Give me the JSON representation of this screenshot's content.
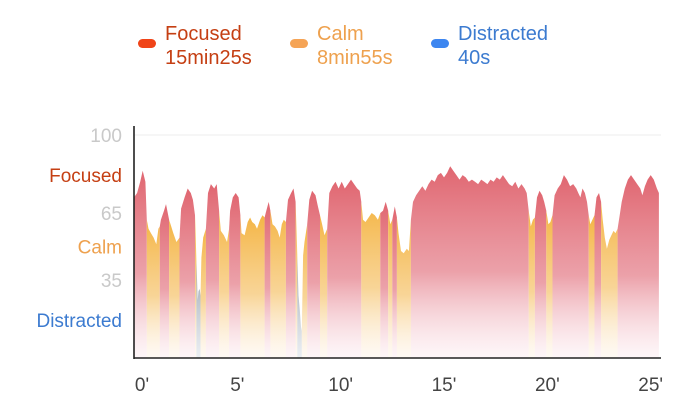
{
  "chart_data": {
    "type": "area",
    "legend_position": "top",
    "series": [
      {
        "name": "Focused",
        "duration": "15min25s",
        "color": "#f04418",
        "text_color": "#c53f13",
        "fill_top": "#e06670"
      },
      {
        "name": "Calm",
        "duration": "8min55s",
        "color": "#f5a456",
        "text_color": "#eea14e",
        "fill_top": "#f4b545"
      },
      {
        "name": "Distracted",
        "duration": "40s",
        "color": "#3d86f0",
        "text_color": "#3c7bd0",
        "fill_top": "#9aa8b8"
      }
    ],
    "x_ticks": [
      "0'",
      "5'",
      "10'",
      "15'",
      "20'",
      "25'"
    ],
    "xlim": [
      0,
      25.5
    ],
    "y_ticks": [
      100,
      65,
      35
    ],
    "ylim": [
      0,
      100
    ],
    "y_category_labels": [
      {
        "label": "Focused",
        "value": 82
      },
      {
        "label": "Calm",
        "value": 50
      },
      {
        "label": "Distracted",
        "value": 17
      }
    ],
    "top_gridline": 100,
    "values": [
      [
        0.0,
        72,
        "F"
      ],
      [
        0.15,
        74,
        "F"
      ],
      [
        0.3,
        79,
        "F"
      ],
      [
        0.42,
        84,
        "F"
      ],
      [
        0.55,
        79,
        "F"
      ],
      [
        0.62,
        62,
        "F"
      ],
      [
        0.7,
        58,
        "C"
      ],
      [
        0.82,
        56,
        "C"
      ],
      [
        0.95,
        54,
        "C"
      ],
      [
        1.08,
        51,
        "C"
      ],
      [
        1.18,
        58,
        "C"
      ],
      [
        1.25,
        59,
        "C"
      ],
      [
        1.3,
        62,
        "F"
      ],
      [
        1.45,
        66,
        "F"
      ],
      [
        1.55,
        69,
        "F"
      ],
      [
        1.7,
        62,
        "F"
      ],
      [
        1.8,
        59,
        "C"
      ],
      [
        1.9,
        56,
        "C"
      ],
      [
        2.05,
        52,
        "C"
      ],
      [
        2.2,
        54,
        "C"
      ],
      [
        2.28,
        67,
        "F"
      ],
      [
        2.45,
        72,
        "F"
      ],
      [
        2.6,
        76,
        "F"
      ],
      [
        2.75,
        74,
        "F"
      ],
      [
        2.85,
        71,
        "F"
      ],
      [
        2.95,
        64,
        "F"
      ],
      [
        3.02,
        44,
        "C"
      ],
      [
        3.08,
        26,
        "D"
      ],
      [
        3.12,
        30,
        "D"
      ],
      [
        3.18,
        31,
        "D"
      ],
      [
        3.22,
        28,
        "D"
      ],
      [
        3.26,
        45,
        "C"
      ],
      [
        3.35,
        54,
        "C"
      ],
      [
        3.48,
        58,
        "C"
      ],
      [
        3.58,
        74,
        "F"
      ],
      [
        3.72,
        78,
        "F"
      ],
      [
        3.88,
        76,
        "F"
      ],
      [
        4.0,
        78,
        "F"
      ],
      [
        4.12,
        66,
        "F"
      ],
      [
        4.2,
        57,
        "C"
      ],
      [
        4.35,
        55,
        "C"
      ],
      [
        4.5,
        52,
        "C"
      ],
      [
        4.6,
        58,
        "C"
      ],
      [
        4.65,
        66,
        "F"
      ],
      [
        4.78,
        72,
        "F"
      ],
      [
        4.92,
        74,
        "F"
      ],
      [
        5.06,
        72,
        "F"
      ],
      [
        5.15,
        64,
        "F"
      ],
      [
        5.2,
        56,
        "C"
      ],
      [
        5.35,
        55,
        "C"
      ],
      [
        5.5,
        61,
        "C"
      ],
      [
        5.62,
        63,
        "C"
      ],
      [
        5.72,
        61,
        "C"
      ],
      [
        5.85,
        60,
        "C"
      ],
      [
        5.95,
        58,
        "C"
      ],
      [
        6.1,
        62,
        "C"
      ],
      [
        6.22,
        64,
        "C"
      ],
      [
        6.32,
        63,
        "C"
      ],
      [
        6.4,
        66,
        "F"
      ],
      [
        6.52,
        70,
        "F"
      ],
      [
        6.6,
        66,
        "F"
      ],
      [
        6.7,
        60,
        "C"
      ],
      [
        6.82,
        59,
        "C"
      ],
      [
        6.95,
        57,
        "C"
      ],
      [
        7.05,
        54,
        "C"
      ],
      [
        7.15,
        60,
        "C"
      ],
      [
        7.25,
        62,
        "C"
      ],
      [
        7.35,
        61,
        "C"
      ],
      [
        7.45,
        71,
        "F"
      ],
      [
        7.6,
        74,
        "F"
      ],
      [
        7.72,
        76,
        "F"
      ],
      [
        7.82,
        70,
        "F"
      ],
      [
        7.9,
        46,
        "C"
      ],
      [
        7.96,
        28,
        "D"
      ],
      [
        8.02,
        22,
        "D"
      ],
      [
        8.08,
        14,
        "D"
      ],
      [
        8.12,
        12,
        "D"
      ],
      [
        8.18,
        46,
        "C"
      ],
      [
        8.25,
        52,
        "C"
      ],
      [
        8.38,
        60,
        "C"
      ],
      [
        8.48,
        71,
        "F"
      ],
      [
        8.62,
        75,
        "F"
      ],
      [
        8.78,
        73,
        "F"
      ],
      [
        8.9,
        68,
        "F"
      ],
      [
        9.0,
        64,
        "F"
      ],
      [
        9.1,
        60,
        "C"
      ],
      [
        9.22,
        55,
        "C"
      ],
      [
        9.35,
        58,
        "C"
      ],
      [
        9.45,
        74,
        "F"
      ],
      [
        9.6,
        77,
        "F"
      ],
      [
        9.75,
        79,
        "F"
      ],
      [
        9.9,
        76,
        "F"
      ],
      [
        10.05,
        79,
        "F"
      ],
      [
        10.2,
        76,
        "F"
      ],
      [
        10.35,
        78,
        "F"
      ],
      [
        10.5,
        80,
        "F"
      ],
      [
        10.65,
        78,
        "F"
      ],
      [
        10.8,
        76,
        "F"
      ],
      [
        10.92,
        75,
        "F"
      ],
      [
        11.0,
        70,
        "F"
      ],
      [
        11.08,
        62,
        "C"
      ],
      [
        11.2,
        61,
        "C"
      ],
      [
        11.35,
        63,
        "C"
      ],
      [
        11.5,
        65,
        "C"
      ],
      [
        11.65,
        64,
        "C"
      ],
      [
        11.8,
        62,
        "C"
      ],
      [
        11.92,
        65,
        "C"
      ],
      [
        12.05,
        66,
        "F"
      ],
      [
        12.18,
        70,
        "F"
      ],
      [
        12.3,
        66,
        "F"
      ],
      [
        12.4,
        60,
        "C"
      ],
      [
        12.5,
        62,
        "C"
      ],
      [
        12.62,
        68,
        "F"
      ],
      [
        12.72,
        63,
        "F"
      ],
      [
        12.8,
        56,
        "C"
      ],
      [
        12.92,
        48,
        "C"
      ],
      [
        13.05,
        47,
        "C"
      ],
      [
        13.2,
        49,
        "C"
      ],
      [
        13.3,
        48,
        "C"
      ],
      [
        13.4,
        62,
        "C"
      ],
      [
        13.5,
        70,
        "F"
      ],
      [
        13.65,
        73,
        "F"
      ],
      [
        13.8,
        75,
        "F"
      ],
      [
        13.95,
        77,
        "F"
      ],
      [
        14.1,
        75,
        "F"
      ],
      [
        14.25,
        78,
        "F"
      ],
      [
        14.4,
        80,
        "F"
      ],
      [
        14.55,
        79,
        "F"
      ],
      [
        14.7,
        82,
        "F"
      ],
      [
        14.85,
        83,
        "F"
      ],
      [
        15.0,
        81,
        "F"
      ],
      [
        15.15,
        83,
        "F"
      ],
      [
        15.3,
        86,
        "F"
      ],
      [
        15.45,
        84,
        "F"
      ],
      [
        15.6,
        82,
        "F"
      ],
      [
        15.75,
        80,
        "F"
      ],
      [
        15.9,
        82,
        "F"
      ],
      [
        16.05,
        81,
        "F"
      ],
      [
        16.2,
        79,
        "F"
      ],
      [
        16.35,
        80,
        "F"
      ],
      [
        16.5,
        79,
        "F"
      ],
      [
        16.65,
        78,
        "F"
      ],
      [
        16.8,
        80,
        "F"
      ],
      [
        16.95,
        79,
        "F"
      ],
      [
        17.1,
        78,
        "F"
      ],
      [
        17.25,
        80,
        "F"
      ],
      [
        17.4,
        79,
        "F"
      ],
      [
        17.55,
        81,
        "F"
      ],
      [
        17.7,
        80,
        "F"
      ],
      [
        17.85,
        82,
        "F"
      ],
      [
        18.0,
        80,
        "F"
      ],
      [
        18.15,
        78,
        "F"
      ],
      [
        18.3,
        77,
        "F"
      ],
      [
        18.45,
        79,
        "F"
      ],
      [
        18.6,
        76,
        "F"
      ],
      [
        18.75,
        78,
        "F"
      ],
      [
        18.9,
        76,
        "F"
      ],
      [
        19.0,
        74,
        "F"
      ],
      [
        19.1,
        66,
        "F"
      ],
      [
        19.2,
        59,
        "C"
      ],
      [
        19.3,
        62,
        "C"
      ],
      [
        19.4,
        63,
        "C"
      ],
      [
        19.5,
        72,
        "F"
      ],
      [
        19.62,
        75,
        "F"
      ],
      [
        19.75,
        73,
        "F"
      ],
      [
        19.85,
        70,
        "F"
      ],
      [
        19.95,
        66,
        "F"
      ],
      [
        20.05,
        60,
        "C"
      ],
      [
        20.15,
        61,
        "C"
      ],
      [
        20.25,
        64,
        "C"
      ],
      [
        20.35,
        73,
        "F"
      ],
      [
        20.5,
        76,
        "F"
      ],
      [
        20.65,
        78,
        "F"
      ],
      [
        20.8,
        82,
        "F"
      ],
      [
        20.95,
        80,
        "F"
      ],
      [
        21.1,
        77,
        "F"
      ],
      [
        21.25,
        78,
        "F"
      ],
      [
        21.4,
        76,
        "F"
      ],
      [
        21.5,
        74,
        "F"
      ],
      [
        21.6,
        72,
        "F"
      ],
      [
        21.7,
        76,
        "F"
      ],
      [
        21.82,
        74,
        "F"
      ],
      [
        21.92,
        70,
        "F"
      ],
      [
        22.0,
        64,
        "F"
      ],
      [
        22.08,
        60,
        "C"
      ],
      [
        22.18,
        62,
        "C"
      ],
      [
        22.28,
        64,
        "C"
      ],
      [
        22.38,
        72,
        "F"
      ],
      [
        22.5,
        74,
        "F"
      ],
      [
        22.6,
        70,
        "F"
      ],
      [
        22.68,
        62,
        "C"
      ],
      [
        22.78,
        54,
        "C"
      ],
      [
        22.88,
        49,
        "C"
      ],
      [
        23.0,
        53,
        "C"
      ],
      [
        23.1,
        55,
        "C"
      ],
      [
        23.2,
        57,
        "C"
      ],
      [
        23.3,
        56,
        "C"
      ],
      [
        23.4,
        58,
        "C"
      ],
      [
        23.5,
        64,
        "F"
      ],
      [
        23.6,
        70,
        "F"
      ],
      [
        23.75,
        76,
        "F"
      ],
      [
        23.9,
        80,
        "F"
      ],
      [
        24.05,
        82,
        "F"
      ],
      [
        24.2,
        80,
        "F"
      ],
      [
        24.35,
        78,
        "F"
      ],
      [
        24.5,
        76,
        "F"
      ],
      [
        24.6,
        73,
        "F"
      ],
      [
        24.72,
        77,
        "F"
      ],
      [
        24.85,
        80,
        "F"
      ],
      [
        25.0,
        82,
        "F"
      ],
      [
        25.15,
        80,
        "F"
      ],
      [
        25.3,
        76,
        "F"
      ],
      [
        25.4,
        74,
        "F"
      ]
    ]
  }
}
